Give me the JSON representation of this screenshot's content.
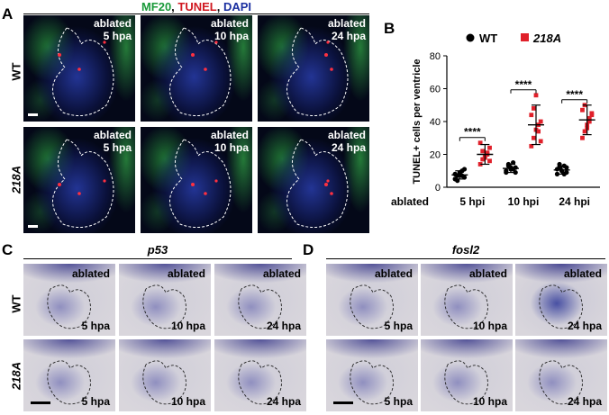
{
  "panel_labels": {
    "a": "A",
    "b": "B",
    "c": "C",
    "d": "D"
  },
  "panel_a": {
    "title_parts": [
      {
        "text": "MF20",
        "color": "#1a9a3a"
      },
      {
        "text": ", ",
        "color": "#000000"
      },
      {
        "text": "TUNEL",
        "color": "#d01820"
      },
      {
        "text": ", ",
        "color": "#000000"
      },
      {
        "text": "DAPI",
        "color": "#1a2fa0"
      }
    ],
    "rows": [
      "WT",
      "218A"
    ],
    "tiles": [
      {
        "line1": "ablated",
        "line2": "5 hpa"
      },
      {
        "line1": "ablated",
        "line2": "10 hpa"
      },
      {
        "line1": "ablated",
        "line2": "24 hpa"
      },
      {
        "line1": "ablated",
        "line2": "5 hpa"
      },
      {
        "line1": "ablated",
        "line2": "10 hpa"
      },
      {
        "line1": "ablated",
        "line2": "24 hpa"
      }
    ]
  },
  "panel_c": {
    "gene": "p53",
    "rows": [
      "WT",
      "218A"
    ],
    "tiles": [
      {
        "top": "ablated",
        "bottom": "5 hpa"
      },
      {
        "top": "ablated",
        "bottom": "10 hpa"
      },
      {
        "top": "ablated",
        "bottom": "24 hpa"
      },
      {
        "top": "",
        "bottom": "5 hpa"
      },
      {
        "top": "",
        "bottom": "10 hpa"
      },
      {
        "top": "",
        "bottom": "24 hpa"
      }
    ]
  },
  "panel_d": {
    "gene": "fosl2",
    "tiles": [
      {
        "top": "ablated",
        "bottom": "5 hpa"
      },
      {
        "top": "ablated",
        "bottom": "10 hpa"
      },
      {
        "top": "ablated",
        "bottom": "24 hpa"
      },
      {
        "top": "",
        "bottom": "5 hpa"
      },
      {
        "top": "",
        "bottom": "10 hpa"
      },
      {
        "top": "",
        "bottom": "24 hpa"
      }
    ]
  },
  "colors": {
    "wt": "#000000",
    "mut": "#e0202a",
    "error": "#000000"
  },
  "chart_data": {
    "type": "scatter",
    "ylabel": "TUNEL+ cells per ventricle",
    "xlabel": "ablated",
    "ylim": [
      0,
      80
    ],
    "yticks": [
      0,
      20,
      40,
      60,
      80
    ],
    "categories": [
      "5 hpi",
      "10 hpi",
      "24 hpi"
    ],
    "legend": [
      {
        "name": "WT",
        "marker": "circle",
        "color": "#000000"
      },
      {
        "name": "218A",
        "marker": "square",
        "color": "#e0202a",
        "italic": true
      }
    ],
    "series": [
      {
        "name": "WT",
        "mean": [
          7.5,
          11.5,
          10.5
        ],
        "sd": [
          2.5,
          2.5,
          2.5
        ],
        "points": [
          [
            5,
            7,
            9,
            10,
            6,
            8,
            4,
            8,
            7,
            11
          ],
          [
            9,
            13,
            11,
            15,
            12,
            10,
            14,
            12,
            11,
            9
          ],
          [
            8,
            12,
            10,
            13,
            9,
            11,
            14,
            10,
            8,
            12
          ]
        ]
      },
      {
        "name": "218A",
        "mean": [
          20,
          38,
          41
        ],
        "sd": [
          6,
          12,
          9
        ],
        "points": [
          [
            14,
            17,
            19,
            21,
            24,
            27,
            22,
            18,
            20,
            16
          ],
          [
            25,
            30,
            35,
            38,
            40,
            44,
            48,
            56,
            34,
            28
          ],
          [
            30,
            34,
            38,
            42,
            45,
            47,
            50,
            36,
            40,
            44
          ]
        ]
      }
    ],
    "significance": [
      "****",
      "****",
      "****"
    ]
  }
}
